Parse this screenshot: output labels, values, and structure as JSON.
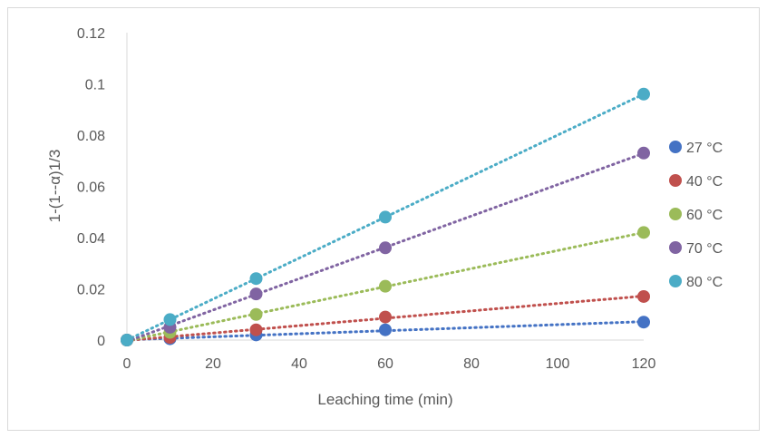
{
  "chart_data": {
    "type": "scatter",
    "title": "",
    "xlabel": "Leaching time (min)",
    "ylabel": "1-(1--α)1/3",
    "xlim": [
      0,
      120
    ],
    "ylim": [
      0,
      0.12
    ],
    "xticks": [
      0,
      20,
      40,
      60,
      80,
      100,
      120
    ],
    "yticks": [
      0,
      0.02,
      0.04,
      0.06,
      0.08,
      0.1,
      0.12
    ],
    "ytick_labels": [
      "0",
      "0.02",
      "0.04",
      "0.06",
      "0.08",
      "0.1",
      "0.12"
    ],
    "x": [
      0,
      10,
      30,
      60,
      120
    ],
    "grid": false,
    "legend_position": "right",
    "trendline": "linear, dotted",
    "series": [
      {
        "name": "27 °C",
        "color": "#4472C4",
        "values": [
          0,
          0.0005,
          0.002,
          0.004,
          0.007
        ]
      },
      {
        "name": "40 °C",
        "color": "#C0504D",
        "values": [
          0,
          0.001,
          0.004,
          0.009,
          0.017
        ]
      },
      {
        "name": "60 °C",
        "color": "#9BBB59",
        "values": [
          0,
          0.003,
          0.01,
          0.021,
          0.042
        ]
      },
      {
        "name": "70 °C",
        "color": "#8064A2",
        "values": [
          0,
          0.005,
          0.018,
          0.036,
          0.073
        ]
      },
      {
        "name": "80 °C",
        "color": "#4BACC6",
        "values": [
          0,
          0.008,
          0.024,
          0.048,
          0.096
        ]
      }
    ]
  }
}
